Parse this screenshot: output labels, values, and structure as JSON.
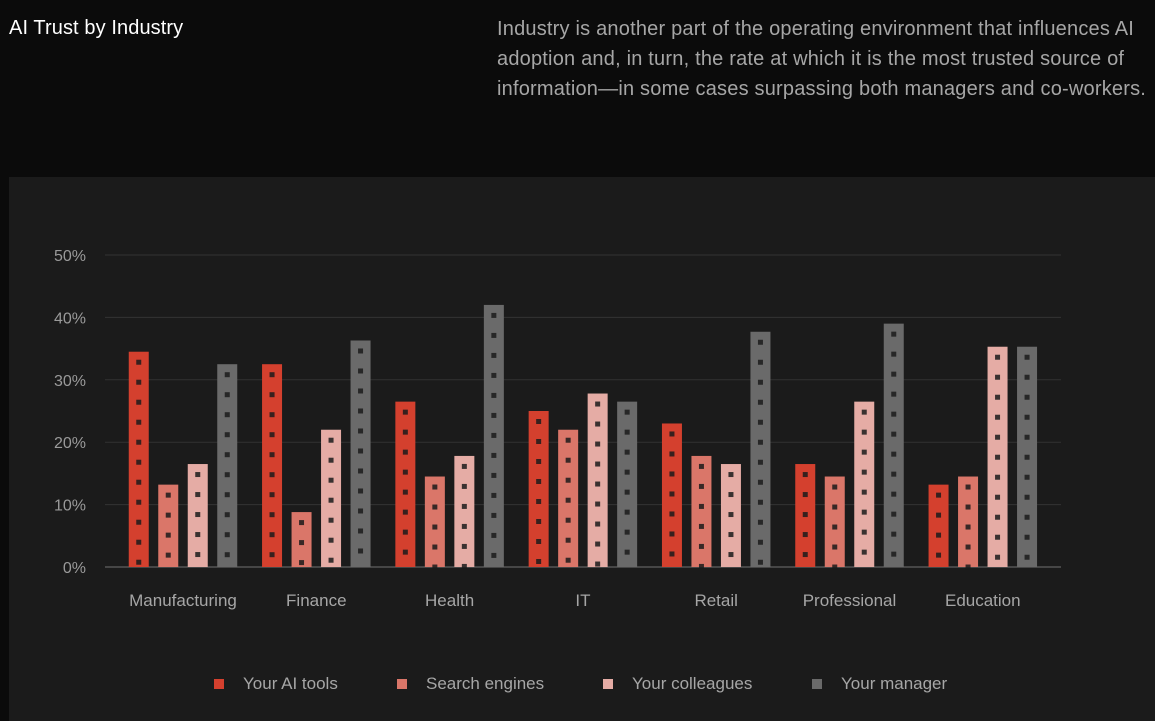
{
  "header": {
    "title": "AI Trust by Industry",
    "description": "Industry is another part of the operating environment that influences AI adoption and, in turn, the rate at which it is the most trusted source of information—in some cases surpassing both managers and co-workers."
  },
  "chart_data": {
    "type": "bar",
    "title": "AI Trust by Industry",
    "xlabel": "",
    "ylabel": "",
    "ylim": [
      0,
      50
    ],
    "yticks": [
      0,
      10,
      20,
      30,
      40,
      50
    ],
    "ytick_labels": [
      "0%",
      "10%",
      "20%",
      "30%",
      "40%",
      "50%"
    ],
    "grid": true,
    "legend_position": "bottom",
    "categories": [
      "Manufacturing",
      "Finance",
      "Health",
      "IT",
      "Retail",
      "Professional",
      "Education"
    ],
    "series": [
      {
        "name": "Your AI tools",
        "color": "#d4402e",
        "values": [
          34.5,
          32.5,
          26.5,
          25,
          23,
          16.5,
          13.2
        ]
      },
      {
        "name": "Search engines",
        "color": "#da7669",
        "values": [
          13.2,
          8.8,
          14.5,
          22,
          17.8,
          14.5,
          14.5
        ]
      },
      {
        "name": "Your colleagues",
        "color": "#e5aca5",
        "values": [
          16.5,
          22,
          17.8,
          27.8,
          16.5,
          26.5,
          35.3
        ]
      },
      {
        "name": "Your manager",
        "color": "#6a6a6a",
        "values": [
          32.5,
          36.3,
          42,
          26.5,
          37.7,
          39,
          35.3
        ]
      }
    ]
  }
}
